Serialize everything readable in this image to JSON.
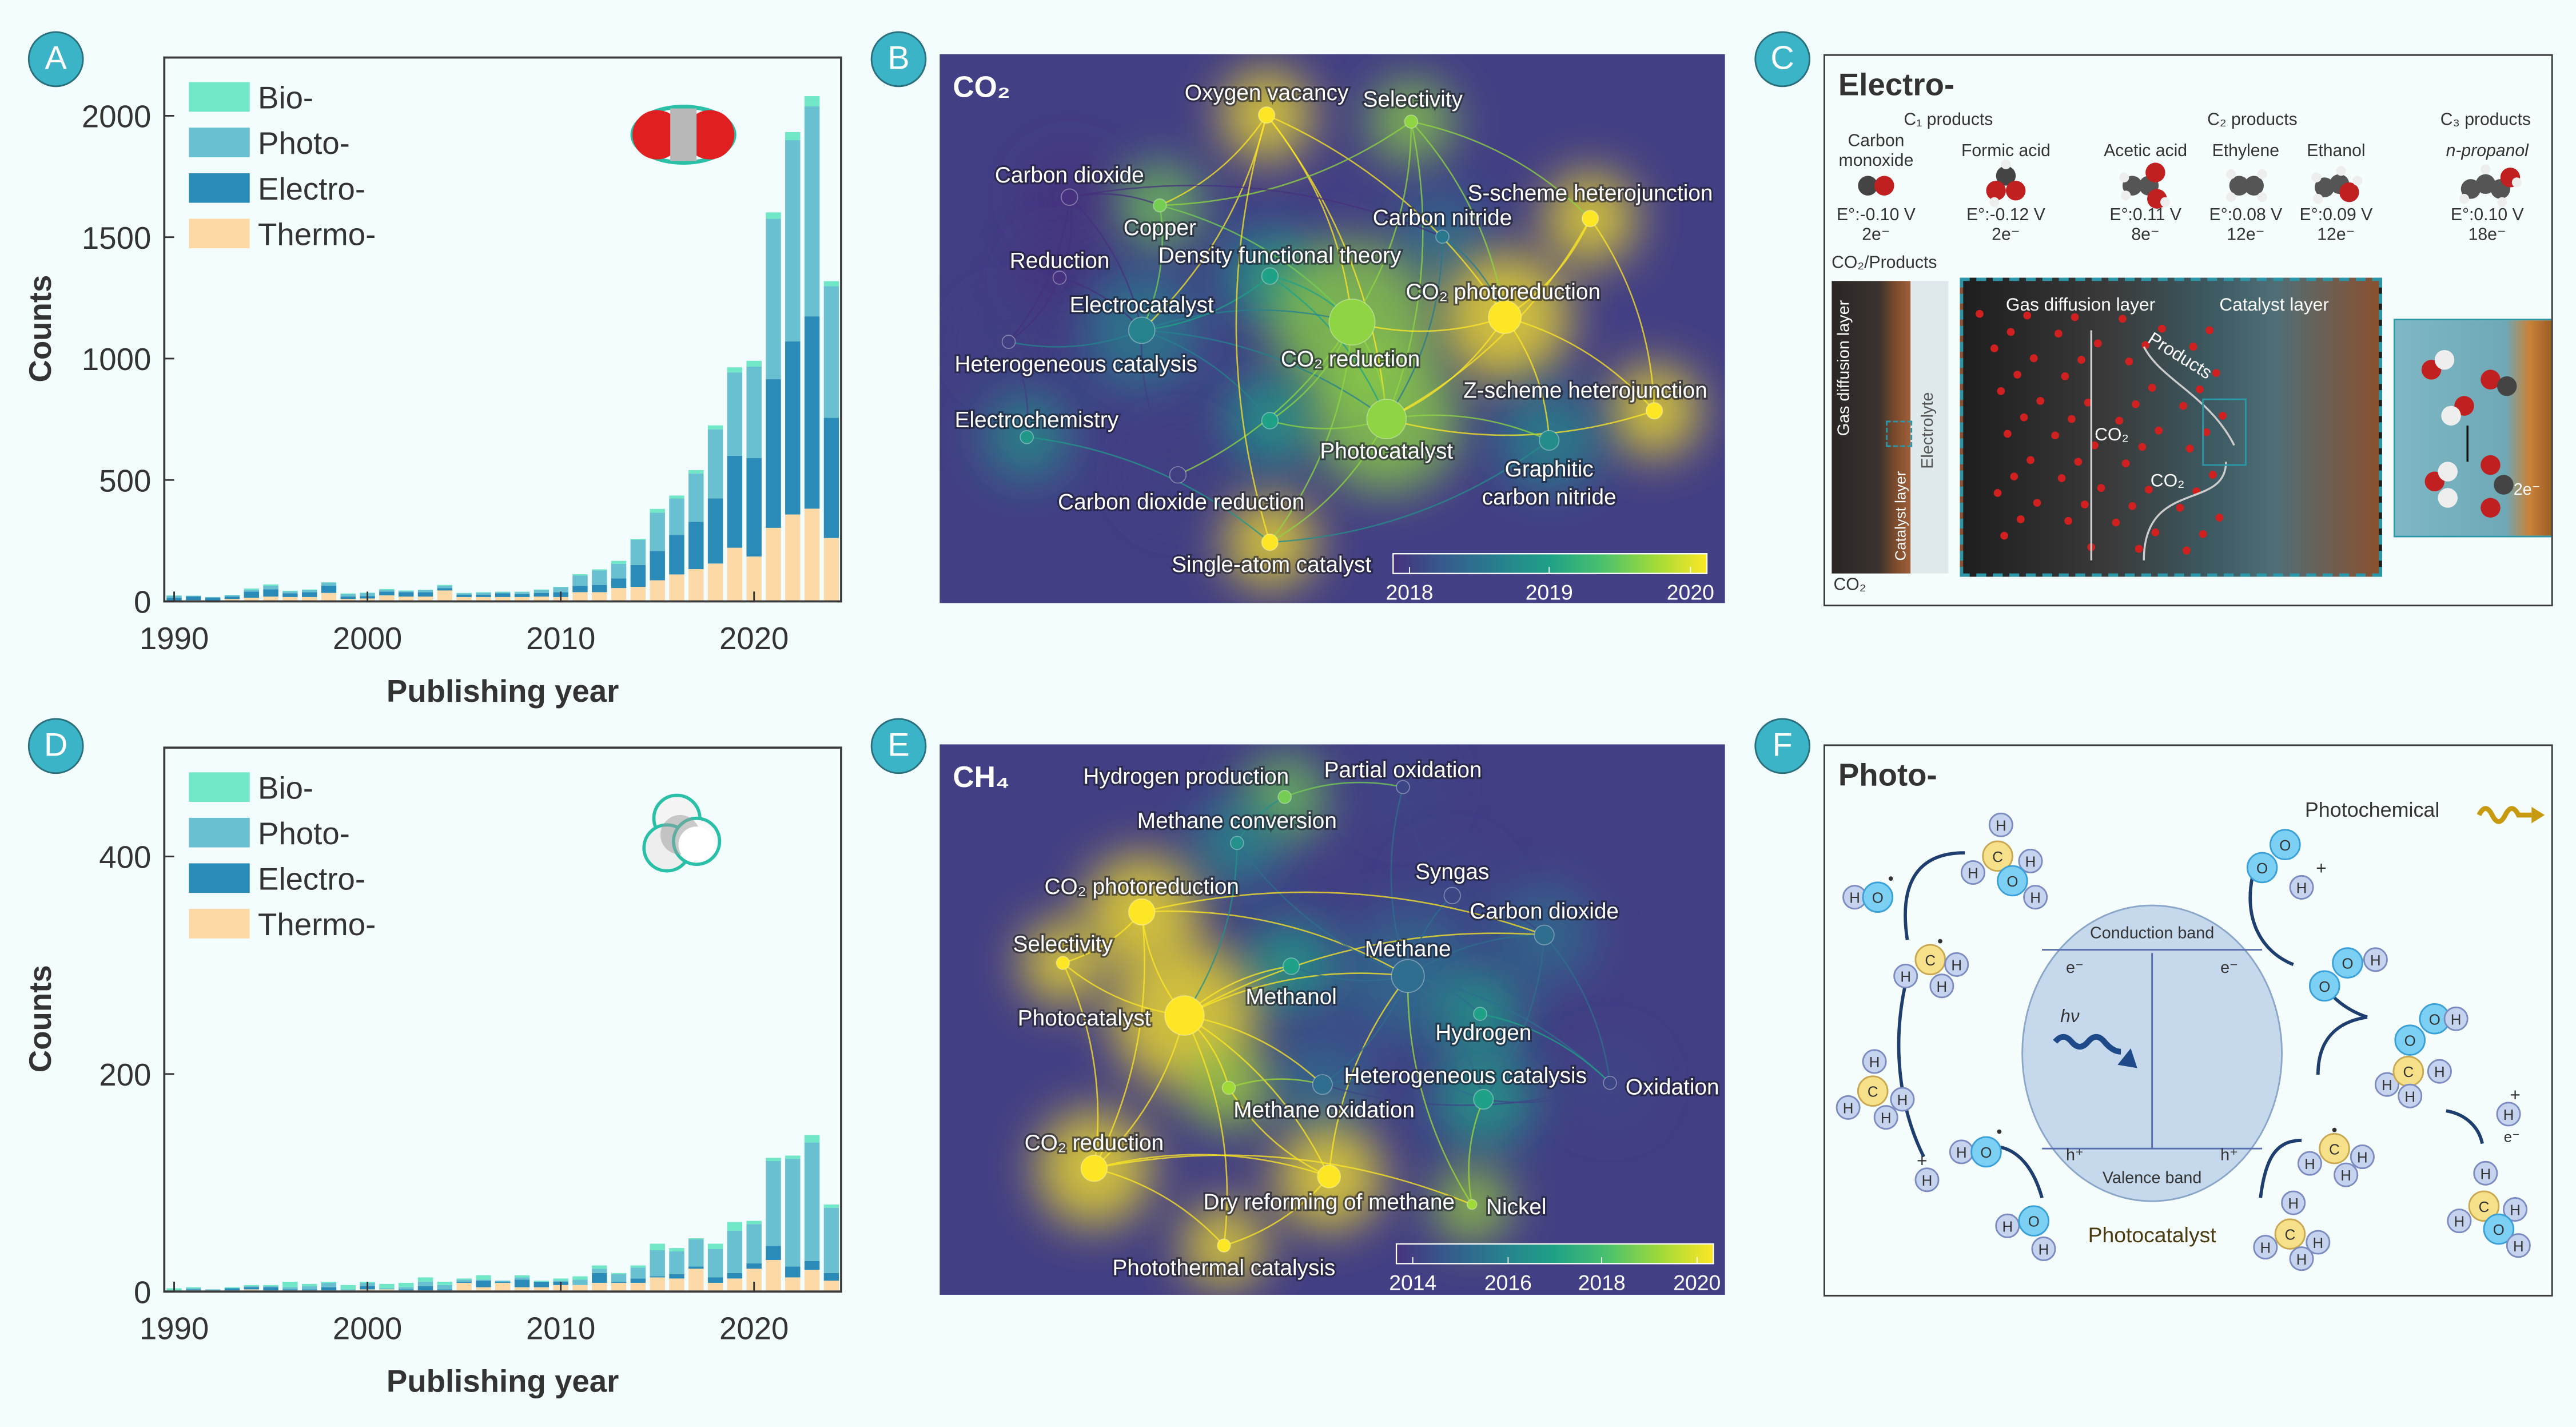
{
  "panels": {
    "A": "A",
    "B": "B",
    "C": "C",
    "D": "D",
    "E": "E",
    "F": "F"
  },
  "colors": {
    "bio": "#70e8c8",
    "photo": "#68c0d0",
    "electro": "#2a8ab8",
    "thermo": "#fcd9a6",
    "badge": "#3cb4c8",
    "network_bg": "#433f85"
  },
  "chart_data": [
    {
      "type": "bar",
      "stacked": true,
      "molecule_icon": "co2-molecule-icon",
      "xlabel": "Publishing year",
      "ylabel": "Counts",
      "xlim": [
        1990,
        2024
      ],
      "ylim": [
        0,
        2240
      ],
      "xticks": [
        1990,
        2000,
        2010,
        2020
      ],
      "yticks": [
        0,
        500,
        1000,
        1500,
        2000
      ],
      "legend_position": "top-left",
      "grid": false,
      "x": [
        1990,
        1991,
        1992,
        1993,
        1994,
        1995,
        1996,
        1997,
        1998,
        1999,
        2000,
        2001,
        2002,
        2003,
        2004,
        2005,
        2006,
        2007,
        2008,
        2009,
        2010,
        2011,
        2012,
        2013,
        2014,
        2015,
        2016,
        2017,
        2018,
        2019,
        2020,
        2021,
        2022,
        2023,
        2024
      ],
      "series": [
        {
          "name": "Bio-",
          "color": "#70e8c8",
          "values": [
            2,
            1,
            0,
            2,
            5,
            5,
            3,
            3,
            2,
            3,
            2,
            3,
            2,
            2,
            3,
            2,
            2,
            2,
            2,
            2,
            2,
            5,
            4,
            12,
            4,
            16,
            12,
            14,
            17,
            21,
            24,
            26,
            33,
            42,
            21
          ]
        },
        {
          "name": "Photo-",
          "color": "#68c0d0",
          "values": [
            8,
            3,
            3,
            5,
            8,
            15,
            8,
            8,
            12,
            10,
            12,
            8,
            5,
            8,
            10,
            5,
            8,
            5,
            8,
            12,
            20,
            43,
            60,
            60,
            104,
            157,
            150,
            199,
            284,
            343,
            377,
            661,
            829,
            865,
            542
          ]
        },
        {
          "name": "Electro-",
          "color": "#2a8ab8",
          "values": [
            12,
            15,
            12,
            10,
            25,
            30,
            15,
            20,
            30,
            10,
            10,
            15,
            18,
            18,
            10,
            10,
            10,
            15,
            12,
            15,
            20,
            26,
            30,
            40,
            90,
            121,
            163,
            195,
            268,
            379,
            405,
            612,
            713,
            792,
            495
          ]
        },
        {
          "name": "Thermo-",
          "color": "#fcd9a6",
          "values": [
            3,
            5,
            3,
            10,
            15,
            20,
            18,
            18,
            35,
            10,
            12,
            25,
            20,
            20,
            45,
            18,
            18,
            18,
            18,
            20,
            18,
            38,
            38,
            55,
            60,
            87,
            111,
            133,
            156,
            221,
            185,
            303,
            358,
            382,
            261
          ]
        }
      ]
    },
    {
      "type": "bar",
      "stacked": true,
      "molecule_icon": "ch4-molecule-icon",
      "xlabel": "Publishing year",
      "ylabel": "Counts",
      "xlim": [
        1990,
        2024
      ],
      "ylim": [
        0,
        500
      ],
      "xticks": [
        1990,
        2000,
        2010,
        2020
      ],
      "yticks": [
        0,
        200,
        400
      ],
      "legend_position": "top-left",
      "grid": false,
      "x": [
        1990,
        1991,
        1992,
        1993,
        1994,
        1995,
        1996,
        1997,
        1998,
        1999,
        2000,
        2001,
        2002,
        2003,
        2004,
        2005,
        2006,
        2007,
        2008,
        2009,
        2010,
        2011,
        2012,
        2013,
        2014,
        2015,
        2016,
        2017,
        2018,
        2019,
        2020,
        2021,
        2022,
        2023,
        2024
      ],
      "series": [
        {
          "name": "Bio-",
          "color": "#70e8c8",
          "values": [
            2,
            1,
            0,
            1,
            1,
            1,
            5,
            2,
            1,
            4,
            1,
            4,
            4,
            4,
            3,
            1,
            4,
            0,
            2,
            1,
            2,
            3,
            3,
            1,
            2,
            6,
            3,
            1,
            5,
            8,
            3,
            3,
            3,
            7,
            3
          ]
        },
        {
          "name": "Photo-",
          "color": "#68c0d0",
          "values": [
            0,
            1,
            1,
            0,
            1,
            1,
            2,
            3,
            4,
            1,
            3,
            1,
            2,
            4,
            4,
            2,
            1,
            1,
            2,
            0,
            1,
            5,
            4,
            7,
            10,
            24,
            21,
            25,
            26,
            39,
            36,
            78,
            99,
            109,
            60
          ]
        },
        {
          "name": "Electro-",
          "color": "#2a8ab8",
          "values": [
            1,
            1,
            1,
            2,
            2,
            3,
            1,
            1,
            3,
            0,
            3,
            0,
            1,
            4,
            1,
            1,
            6,
            1,
            7,
            5,
            3,
            0,
            9,
            1,
            4,
            1,
            4,
            2,
            5,
            5,
            5,
            13,
            10,
            8,
            7
          ]
        },
        {
          "name": "Thermo-",
          "color": "#fcd9a6",
          "values": [
            0,
            1,
            0,
            1,
            2,
            1,
            1,
            1,
            1,
            1,
            2,
            2,
            1,
            1,
            1,
            8,
            4,
            8,
            4,
            4,
            6,
            6,
            8,
            8,
            8,
            13,
            12,
            21,
            8,
            12,
            21,
            29,
            13,
            20,
            10
          ]
        }
      ]
    }
  ],
  "networks": [
    {
      "title": "CO₂",
      "colorbar": {
        "range": [
          2018,
          2020
        ],
        "ticks": [
          "2018",
          "2019",
          "2020"
        ]
      },
      "nodes": [
        {
          "label": "Oxygen vacancy",
          "year": 2020
        },
        {
          "label": "Selectivity",
          "year": 2019.6
        },
        {
          "label": "Carbon dioxide",
          "year": 2018
        },
        {
          "label": "Copper",
          "year": 2019.5
        },
        {
          "label": "Reduction",
          "year": 2018
        },
        {
          "label": "Density functional theory",
          "year": 2019
        },
        {
          "label": "Carbon nitride",
          "year": 2018.6
        },
        {
          "label": "S-scheme heterojunction",
          "year": 2020
        },
        {
          "label": "CO₂ photoreduction",
          "year": 2020
        },
        {
          "label": "Electrocatalyst",
          "year": 2018.7
        },
        {
          "label": "CO₂ reduction",
          "year": 2019.6
        },
        {
          "label": "Heterogeneous catalysis",
          "year": 2018.1
        },
        {
          "label": "Z-scheme heterojunction",
          "year": 2020
        },
        {
          "label": "Electrochemistry",
          "year": 2018.9
        },
        {
          "year": 2019
        },
        {
          "label": "Photocatalyst",
          "year": 2019.6
        },
        {
          "label": "Graphitic carbon nitride",
          "year": 2018.8
        },
        {
          "label": "Carbon dioxide reduction",
          "year": 2018.1
        },
        {
          "label": "Single-atom catalyst",
          "year": 2020
        }
      ],
      "links": [
        [
          0,
          10
        ],
        [
          0,
          15
        ],
        [
          0,
          9
        ],
        [
          0,
          3
        ],
        [
          0,
          8
        ],
        [
          1,
          10
        ],
        [
          1,
          15
        ],
        [
          1,
          8
        ],
        [
          1,
          3
        ],
        [
          2,
          4
        ],
        [
          2,
          11
        ],
        [
          2,
          9
        ],
        [
          2,
          3
        ],
        [
          2,
          6
        ],
        [
          4,
          11
        ],
        [
          4,
          9
        ],
        [
          3,
          9
        ],
        [
          3,
          10
        ],
        [
          5,
          10
        ],
        [
          5,
          9
        ],
        [
          5,
          15
        ],
        [
          6,
          8
        ],
        [
          6,
          15
        ],
        [
          7,
          8
        ],
        [
          7,
          15
        ],
        [
          7,
          12
        ],
        [
          8,
          10
        ],
        [
          8,
          15
        ],
        [
          8,
          12
        ],
        [
          8,
          16
        ],
        [
          9,
          10
        ],
        [
          9,
          11
        ],
        [
          9,
          15
        ],
        [
          9,
          14
        ],
        [
          10,
          15
        ],
        [
          10,
          17
        ],
        [
          10,
          18
        ],
        [
          10,
          14
        ],
        [
          11,
          13
        ],
        [
          12,
          15
        ],
        [
          15,
          16
        ],
        [
          15,
          18
        ],
        [
          15,
          14
        ],
        [
          16,
          18
        ],
        [
          13,
          18
        ],
        [
          17,
          9
        ],
        [
          18,
          0
        ],
        [
          1,
          7
        ]
      ]
    },
    {
      "title": "CH₄",
      "colorbar": {
        "range": [
          2014,
          2020
        ],
        "ticks": [
          "2014",
          "2016",
          "2018",
          "2020"
        ]
      },
      "nodes": [
        {
          "label": "Hydrogen production",
          "year": 2018.5
        },
        {
          "label": "Partial oxidation",
          "year": 2014.5
        },
        {
          "label": "Methane conversion",
          "year": 2016.5
        },
        {
          "label": "Syngas",
          "year": 2014.5
        },
        {
          "label": "Carbon dioxide",
          "year": 2015.5
        },
        {
          "label": "CO₂ photoreduction",
          "year": 2020
        },
        {
          "label": "Selectivity",
          "year": 2020
        },
        {
          "label": "Methane",
          "year": 2015.5
        },
        {
          "label": "Methanol",
          "year": 2017
        },
        {
          "label": "Photocatalyst",
          "year": 2020
        },
        {
          "label": "Hydrogen",
          "year": 2017
        },
        {
          "label": "Heterogeneous catalysis",
          "year": 2015.5
        },
        {
          "label": "Oxidation",
          "year": 2014.5
        },
        {
          "label": "Methane oxidation",
          "year": 2019
        },
        {
          "year": 2017
        },
        {
          "label": "CO₂ reduction",
          "year": 2020
        },
        {
          "label": "Dry reforming of methane",
          "year": 2020
        },
        {
          "label": "Nickel",
          "year": 2019
        },
        {
          "label": "Photothermal catalysis",
          "year": 2020
        }
      ],
      "links": [
        [
          9,
          5
        ],
        [
          9,
          6
        ],
        [
          9,
          15
        ],
        [
          9,
          7
        ],
        [
          9,
          8
        ],
        [
          9,
          13
        ],
        [
          9,
          16
        ],
        [
          9,
          18
        ],
        [
          9,
          11
        ],
        [
          9,
          4
        ],
        [
          5,
          6
        ],
        [
          5,
          15
        ],
        [
          5,
          7
        ],
        [
          6,
          15
        ],
        [
          15,
          18
        ],
        [
          15,
          16
        ],
        [
          15,
          17
        ],
        [
          16,
          7
        ],
        [
          16,
          13
        ],
        [
          16,
          18
        ],
        [
          7,
          4
        ],
        [
          7,
          3
        ],
        [
          7,
          12
        ],
        [
          7,
          10
        ],
        [
          7,
          11
        ],
        [
          7,
          14
        ],
        [
          7,
          8
        ],
        [
          7,
          2
        ],
        [
          7,
          1
        ],
        [
          3,
          1
        ],
        [
          3,
          4
        ],
        [
          4,
          12
        ],
        [
          4,
          14
        ],
        [
          12,
          14
        ],
        [
          12,
          11
        ],
        [
          2,
          0
        ],
        [
          2,
          9
        ],
        [
          0,
          1
        ],
        [
          13,
          11
        ],
        [
          17,
          7
        ],
        [
          17,
          14
        ],
        [
          11,
          14
        ],
        [
          10,
          12
        ],
        [
          5,
          4
        ]
      ]
    }
  ],
  "electro": {
    "title": "Electro-",
    "groups": [
      "C₁ products",
      "C₂ products",
      "C₃ products"
    ],
    "products": [
      {
        "name": "Carbon monoxide",
        "potential": "E°:-0.10 V",
        "electrons": "2e⁻"
      },
      {
        "name": "Formic acid",
        "potential": "E°:-0.12 V",
        "electrons": "2e⁻"
      },
      {
        "name": "Acetic acid",
        "potential": "E°:0.11 V",
        "electrons": "8e⁻"
      },
      {
        "name": "Ethylene",
        "potential": "E°:0.08 V",
        "electrons": "12e⁻"
      },
      {
        "name": "Ethanol",
        "potential": "E°:0.09 V",
        "electrons": "12e⁻"
      },
      {
        "name": "n-propanol",
        "potential": "E°:0.10 V",
        "electrons": "18e⁻"
      }
    ],
    "section_label": "CO₂/Products",
    "strip": {
      "gdl": "Gas diffusion layer",
      "cl": "Catalyst layer",
      "electrolyte": "Electrolyte",
      "co2": "CO₂"
    },
    "image": {
      "gdl": "Gas diffusion layer",
      "cl": "Catalyst layer",
      "products": "Products",
      "co2_a": "CO₂",
      "co2_b": "CO₂",
      "electrons": "2e⁻"
    }
  },
  "photo": {
    "title": "Photo-",
    "legend": "Photochemical",
    "conduction": "Conduction band",
    "valence": "Valence band",
    "electron": "e⁻",
    "hole": "h⁺",
    "hv": "hν",
    "catalyst": "Photocatalyst",
    "atoms": {
      "H": "H",
      "C": "C",
      "O": "O"
    },
    "radical": "•",
    "plus": "+"
  }
}
